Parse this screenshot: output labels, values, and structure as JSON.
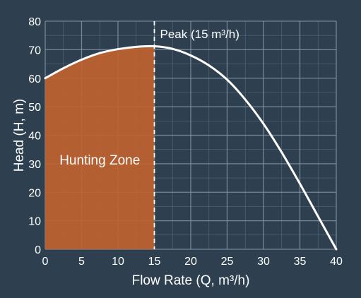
{
  "chart_data": {
    "type": "area",
    "xlabel": "Flow Rate (Q, m³/h)",
    "ylabel": "Head (H, m)",
    "xlim": [
      0,
      40
    ],
    "ylim": [
      0,
      80
    ],
    "x_ticks": [
      0,
      5,
      10,
      15,
      20,
      25,
      30,
      35,
      40
    ],
    "y_ticks": [
      0,
      10,
      20,
      30,
      40,
      50,
      60,
      70,
      80
    ],
    "x_tick_labels": [
      "0",
      "5",
      "10",
      "15",
      "20",
      "25",
      "30",
      "35",
      "40"
    ],
    "y_tick_labels": [
      "0",
      "10",
      "20",
      "30",
      "40",
      "50",
      "60",
      "70",
      "80"
    ],
    "grid": true,
    "series": [
      {
        "x": [
          0,
          2.5,
          5,
          7.5,
          10,
          12.5,
          15,
          17.5,
          20,
          22.5,
          25,
          27.5,
          30,
          32.5,
          35,
          37.5,
          40
        ],
        "y": [
          60,
          63.5,
          66.5,
          68.8,
          70.2,
          71,
          71.2,
          70.3,
          68,
          64.5,
          59.5,
          52.5,
          44,
          34,
          23,
          11.5,
          0
        ]
      }
    ],
    "shaded_region": {
      "label": "Hunting Zone",
      "x_from": 0,
      "x_to": 15,
      "color": "#c0622f"
    },
    "reference_line": {
      "x": 15,
      "style": "dashed",
      "label": "Peak (15 m³/h)"
    }
  },
  "colors": {
    "background": "#2e4050",
    "grid": "#8194a4",
    "curve": "#ffffff",
    "zone_fill": "#c0622f",
    "text": "#ffffff"
  }
}
